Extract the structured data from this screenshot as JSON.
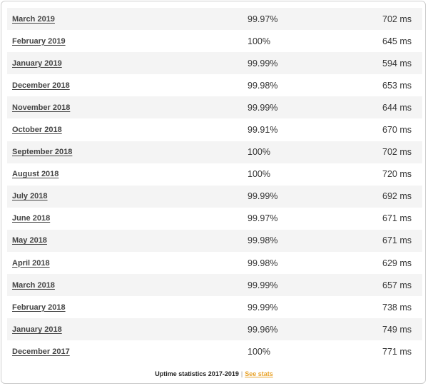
{
  "rows": [
    {
      "month": "March 2019",
      "uptime": "99.97%",
      "response": "702 ms"
    },
    {
      "month": "February 2019",
      "uptime": "100%",
      "response": "645 ms"
    },
    {
      "month": "January 2019",
      "uptime": "99.99%",
      "response": "594 ms"
    },
    {
      "month": "December 2018",
      "uptime": "99.98%",
      "response": "653 ms"
    },
    {
      "month": "November 2018",
      "uptime": "99.99%",
      "response": "644 ms"
    },
    {
      "month": "October 2018",
      "uptime": "99.91%",
      "response": "670 ms"
    },
    {
      "month": "September 2018",
      "uptime": "100%",
      "response": "702 ms"
    },
    {
      "month": "August 2018",
      "uptime": "100%",
      "response": "720 ms"
    },
    {
      "month": "July 2018",
      "uptime": "99.99%",
      "response": "692 ms"
    },
    {
      "month": "June 2018",
      "uptime": "99.97%",
      "response": "671 ms"
    },
    {
      "month": "May 2018",
      "uptime": "99.98%",
      "response": "671 ms"
    },
    {
      "month": "April 2018",
      "uptime": "99.98%",
      "response": "629 ms"
    },
    {
      "month": "March 2018",
      "uptime": "99.99%",
      "response": "657 ms"
    },
    {
      "month": "February 2018",
      "uptime": "99.99%",
      "response": "738 ms"
    },
    {
      "month": "January 2018",
      "uptime": "99.96%",
      "response": "749 ms"
    },
    {
      "month": "December 2017",
      "uptime": "100%",
      "response": "771 ms"
    }
  ],
  "footer": {
    "caption": "Uptime statistics 2017-2019",
    "separator": "|",
    "link_label": "See stats"
  },
  "colors": {
    "link_accent": "#e8a32b",
    "row_stripe": "#f4f4f4"
  }
}
